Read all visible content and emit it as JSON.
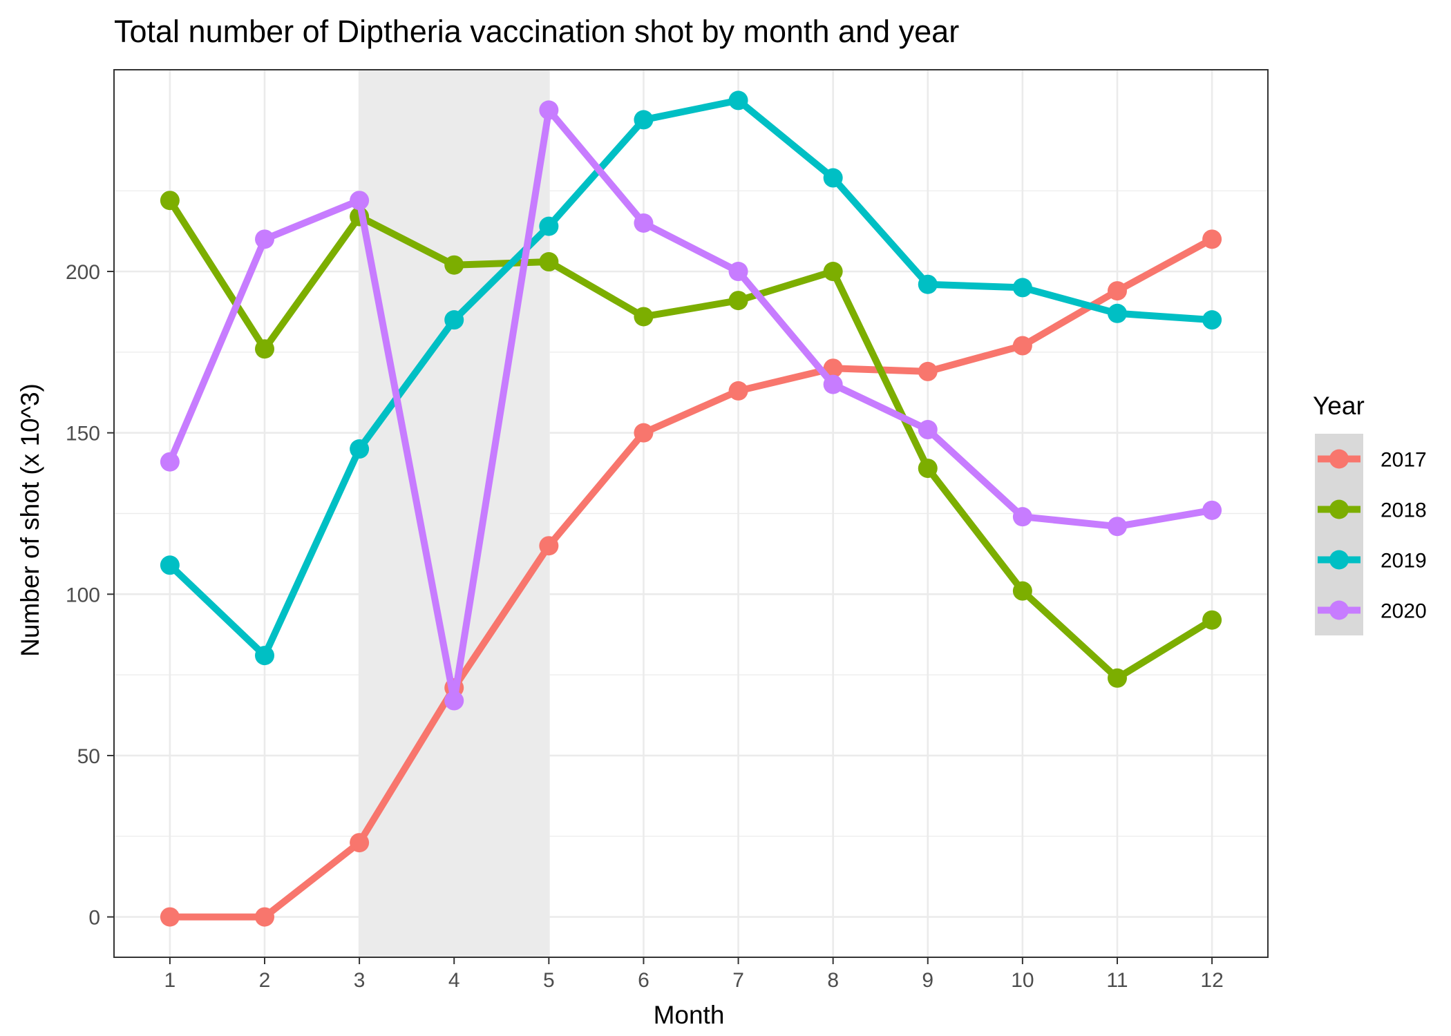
{
  "chart_data": {
    "type": "line",
    "title": "Total number of Diptheria vaccination shot by month and year",
    "xlabel": "Month",
    "ylabel": "Number of shot (x 10^3)",
    "x": [
      1,
      2,
      3,
      4,
      5,
      6,
      7,
      8,
      9,
      10,
      11,
      12
    ],
    "xlim": [
      0.41,
      12.59
    ],
    "ylim": [
      -12.5,
      262.5
    ],
    "y_ticks": [
      0,
      50,
      100,
      150,
      200
    ],
    "grid": true,
    "highlight_band": {
      "x_start": 3,
      "x_end": 5,
      "color": "#ebebeb"
    },
    "legend": {
      "title": "Year",
      "placement": "right"
    },
    "series": [
      {
        "name": "2017",
        "color": "#F8766D",
        "values": [
          0,
          0,
          23,
          71,
          115,
          150,
          163,
          170,
          169,
          177,
          194,
          210
        ]
      },
      {
        "name": "2018",
        "color": "#7CAE00",
        "values": [
          222,
          176,
          217,
          202,
          203,
          186,
          191,
          200,
          139,
          101,
          74,
          92
        ]
      },
      {
        "name": "2019",
        "color": "#00BFC4",
        "values": [
          109,
          81,
          145,
          185,
          214,
          247,
          253,
          229,
          196,
          195,
          187,
          185
        ]
      },
      {
        "name": "2020",
        "color": "#C77CFF",
        "values": [
          141,
          210,
          222,
          67,
          250,
          215,
          200,
          165,
          151,
          124,
          121,
          126
        ]
      }
    ]
  }
}
